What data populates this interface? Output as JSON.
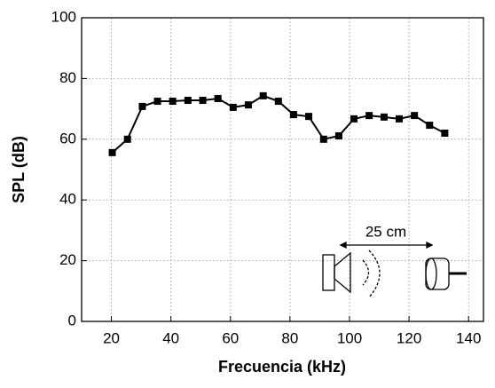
{
  "chart_data": {
    "type": "line",
    "x_label": "Frecuencia (kHz)",
    "y_label": "SPL (dB)",
    "annotation": "25 cm",
    "x": [
      20.3,
      25.4,
      30.4,
      35.5,
      40.6,
      45.7,
      50.7,
      55.8,
      60.9,
      66.0,
      71.0,
      76.1,
      81.2,
      86.3,
      91.3,
      96.4,
      101.5,
      106.6,
      111.6,
      116.7,
      121.8,
      126.9,
      132.0
    ],
    "values": [
      55.6,
      60,
      70.8,
      72.5,
      72.5,
      72.8,
      72.8,
      73.4,
      70.5,
      71.3,
      74.3,
      72.5,
      68.1,
      67.5,
      60,
      61.1,
      66.7,
      67.8,
      67.3,
      66.7,
      67.8,
      64.6,
      62
    ],
    "color": "#000000",
    "xlim": [
      10,
      145
    ],
    "xticks": [
      20,
      40,
      60,
      80,
      100,
      120,
      140
    ],
    "ylim": [
      0,
      100
    ],
    "yticks": [
      0,
      20,
      40,
      60,
      80,
      100
    ],
    "grid": true
  }
}
